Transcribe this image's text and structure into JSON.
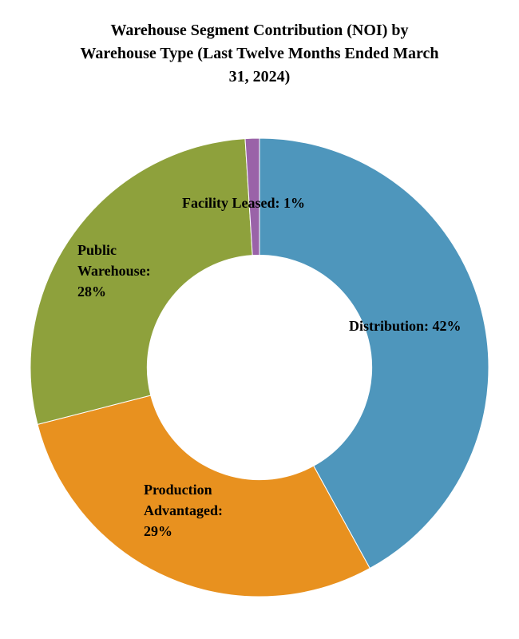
{
  "title_lines": [
    "Warehouse Segment Contribution (NOI) by",
    "Warehouse Type (Last Twelve Months Ended March",
    "31, 2024)"
  ],
  "chart_data": {
    "type": "pie",
    "subtype": "donut",
    "title": "Warehouse Segment Contribution (NOI) by Warehouse Type (Last Twelve Months Ended March 31, 2024)",
    "categories": [
      "Distribution",
      "Production Advantaged",
      "Public Warehouse",
      "Facility Leased"
    ],
    "values": [
      42,
      29,
      28,
      1
    ],
    "unit": "%",
    "colors": [
      "#4E96BC",
      "#E8911F",
      "#8EA13C",
      "#9A63A8"
    ],
    "slice_labels": [
      "Distribution: 42%",
      "Production Advantaged: 29%",
      "Public Warehouse: 28%",
      "Facility Leased: 1%"
    ],
    "start_angle_deg": 0,
    "direction": "clockwise",
    "inner_radius_ratio": 0.49,
    "legend": "none",
    "background": "#ffffff"
  }
}
